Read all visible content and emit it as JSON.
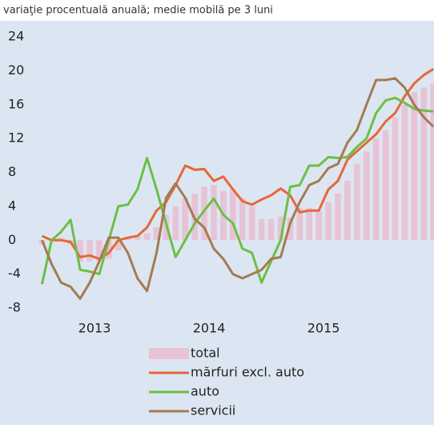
{
  "chart_data": {
    "type": "bar_line",
    "subtitle": "variaţie procentuală anuală; medie mobilă pe 3 luni",
    "categories": [
      null,
      null,
      null,
      null,
      null,
      null,
      null,
      null,
      null,
      null,
      null,
      null,
      null,
      null,
      null,
      null,
      null,
      null,
      null,
      null,
      null,
      null,
      null,
      null,
      null,
      null,
      null,
      null,
      null,
      null,
      null,
      null,
      null,
      null,
      null,
      null,
      null,
      null,
      null,
      null,
      null,
      null
    ],
    "year_labels": [
      "2013",
      "2014",
      "2015"
    ],
    "ylim": [
      -8,
      24
    ],
    "yticks": [
      -8,
      -4,
      0,
      4,
      8,
      12,
      16,
      20,
      24
    ],
    "grid": false,
    "series": [
      {
        "name": "total",
        "kind": "bar",
        "color": "#e8c3d5",
        "values": [
          -0.5,
          0.2,
          0.3,
          -0.5,
          -2.5,
          -2.5,
          -2.5,
          -2.2,
          -1.2,
          0.3,
          0.5,
          0.8,
          1.5,
          3,
          4,
          5,
          5.5,
          6.3,
          6.5,
          5.8,
          6,
          5,
          4,
          2.5,
          2.5,
          2.8,
          2.7,
          3.8,
          3.8,
          3.5,
          4.5,
          5.5,
          7,
          9,
          10.5,
          12,
          13,
          14.5,
          16,
          17.5,
          18,
          18.5
        ]
      },
      {
        "name": "mărfuri excl. auto",
        "kind": "line",
        "color": "#e8663a",
        "values": [
          0.5,
          0,
          0,
          -0.2,
          -2,
          -1.8,
          -2.2,
          -1.5,
          0,
          0.3,
          0.5,
          1.5,
          3.5,
          4.5,
          6.5,
          8.8,
          8.3,
          8.4,
          7,
          7.5,
          6,
          4.6,
          4.2,
          4.8,
          5.3,
          6.1,
          5.3,
          3.3,
          3.5,
          3.5,
          6,
          7,
          9.5,
          10.5,
          11.5,
          12.5,
          14,
          15,
          17,
          18.5,
          19.5,
          20.2
        ]
      },
      {
        "name": "auto",
        "kind": "line",
        "color": "#6cbf47",
        "values": [
          -5.2,
          0,
          1,
          2.4,
          -3.5,
          -3.7,
          -4,
          0,
          4,
          4.2,
          6,
          9.7,
          6,
          2,
          -2,
          0,
          2,
          3.5,
          4.9,
          3,
          2,
          -1,
          -1.5,
          -5,
          -2.5,
          0,
          6.3,
          6.5,
          8.8,
          8.8,
          9.8,
          9.7,
          9.8,
          11,
          12,
          15,
          16.5,
          16.8,
          16.2,
          15.5,
          15.3,
          15.2
        ]
      },
      {
        "name": "servicii",
        "kind": "line",
        "color": "#a57a52",
        "values": [
          0,
          -2.8,
          -5,
          -5.5,
          -6.9,
          -5,
          -2.5,
          0.3,
          0.3,
          -1.5,
          -4.5,
          -6,
          -1.5,
          5,
          6.7,
          5,
          2.5,
          1.5,
          -1,
          -2.2,
          -4,
          -4.5,
          -4,
          -3.5,
          -2.2,
          -2,
          2,
          4.5,
          6.5,
          7,
          8.5,
          9,
          11.5,
          13,
          16,
          18.9,
          18.9,
          19.1,
          18,
          16,
          14.5,
          13.4
        ]
      }
    ]
  }
}
